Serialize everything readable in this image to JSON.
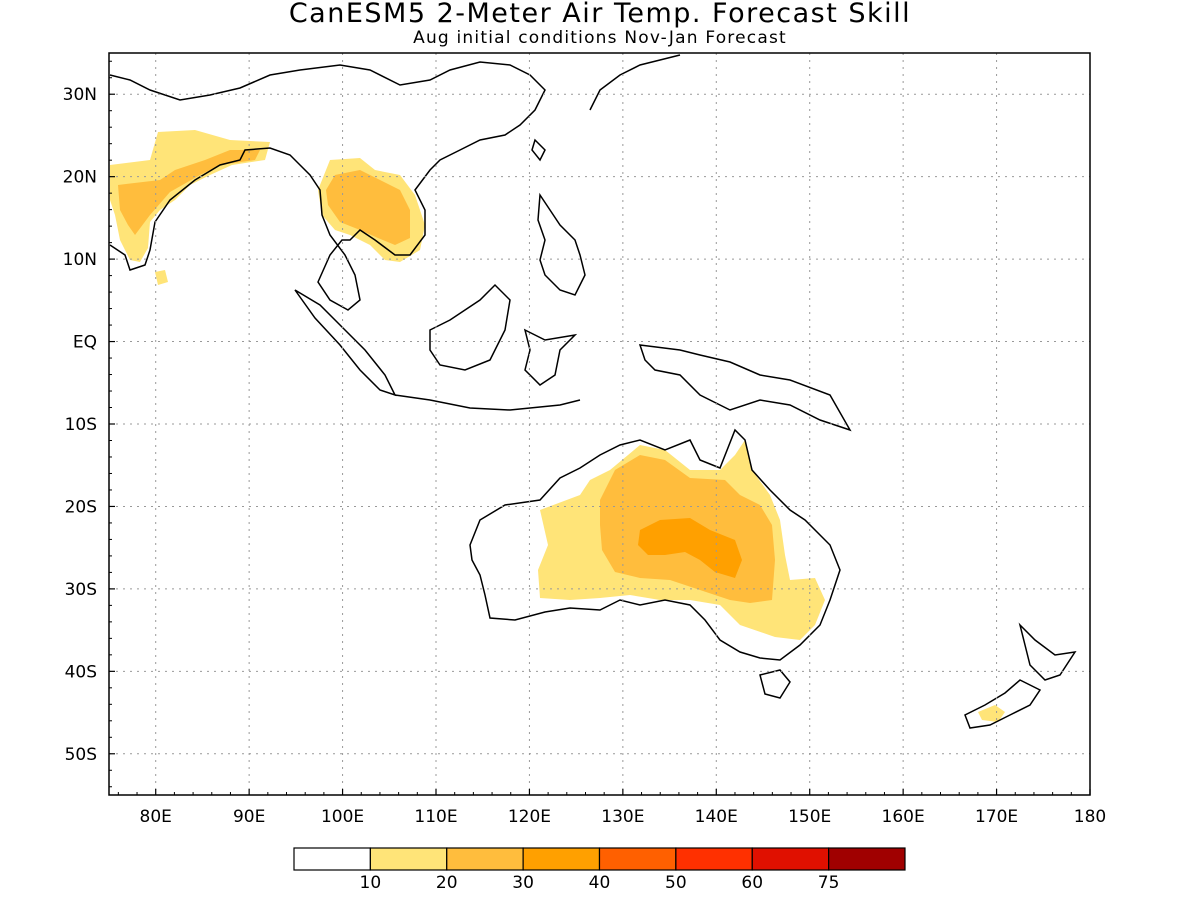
{
  "header": {
    "title": "CanESM5 2-Meter Air Temp. Forecast Skill",
    "subtitle": "Aug initial conditions  Nov-Jan Forecast"
  },
  "map": {
    "lon_labels": [
      "80E",
      "90E",
      "100E",
      "110E",
      "120E",
      "130E",
      "140E",
      "150E",
      "160E",
      "170E",
      "180"
    ],
    "lat_labels": [
      "30N",
      "20N",
      "10N",
      "EQ",
      "10S",
      "20S",
      "30S",
      "40S",
      "50S"
    ],
    "lon_range": [
      75,
      180
    ],
    "lat_range": [
      -55,
      35
    ],
    "grid": true,
    "coastline_color": "#000000"
  },
  "colorbar": {
    "labels": [
      "10",
      "20",
      "30",
      "40",
      "50",
      "60",
      "75"
    ],
    "colors": [
      "#ffffff",
      "#ffe478",
      "#ffbd3d",
      "#ffa000",
      "#ff6000",
      "#ff3000",
      "#e01000",
      "#a00000"
    ]
  },
  "skill_regions": [
    {
      "name": "India",
      "level": 1
    },
    {
      "name": "Indochina",
      "level": 2
    },
    {
      "name": "Australia interior",
      "level": 1
    },
    {
      "name": "Central Australia",
      "level": 2
    },
    {
      "name": "Central Australia core",
      "level": 3
    },
    {
      "name": "South Island NZ",
      "level": 1
    }
  ]
}
